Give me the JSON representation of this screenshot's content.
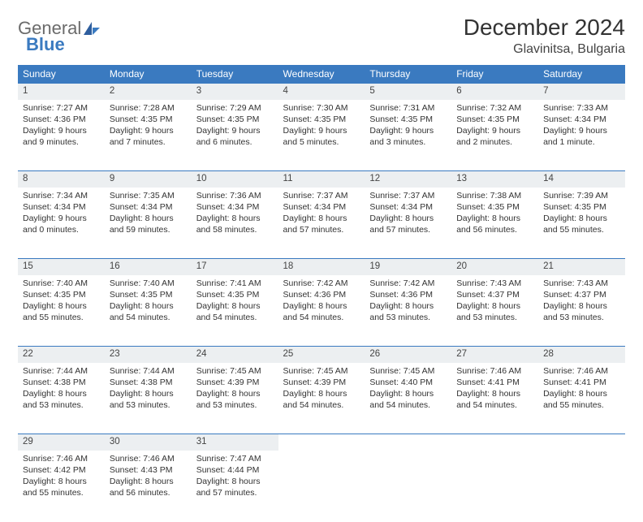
{
  "logo": {
    "text1": "General",
    "text2": "Blue"
  },
  "title": "December 2024",
  "location": "Glavinitsa, Bulgaria",
  "colors": {
    "header_bg": "#3a7ac0",
    "header_text": "#ffffff",
    "daynum_bg": "#eceff1",
    "rule": "#3a7ac0",
    "text": "#333333",
    "logo_gray": "#6b6b6b",
    "logo_blue": "#3a7ac0",
    "page_bg": "#ffffff"
  },
  "typography": {
    "title_fontsize": 28,
    "location_fontsize": 16,
    "dayheader_fontsize": 12,
    "daynum_fontsize": 11.5,
    "cell_fontsize": 10.5,
    "font_family": "Arial"
  },
  "headers": [
    "Sunday",
    "Monday",
    "Tuesday",
    "Wednesday",
    "Thursday",
    "Friday",
    "Saturday"
  ],
  "weeks": [
    [
      {
        "n": "1",
        "sr": "Sunrise: 7:27 AM",
        "ss": "Sunset: 4:36 PM",
        "dl": "Daylight: 9 hours and 9 minutes."
      },
      {
        "n": "2",
        "sr": "Sunrise: 7:28 AM",
        "ss": "Sunset: 4:35 PM",
        "dl": "Daylight: 9 hours and 7 minutes."
      },
      {
        "n": "3",
        "sr": "Sunrise: 7:29 AM",
        "ss": "Sunset: 4:35 PM",
        "dl": "Daylight: 9 hours and 6 minutes."
      },
      {
        "n": "4",
        "sr": "Sunrise: 7:30 AM",
        "ss": "Sunset: 4:35 PM",
        "dl": "Daylight: 9 hours and 5 minutes."
      },
      {
        "n": "5",
        "sr": "Sunrise: 7:31 AM",
        "ss": "Sunset: 4:35 PM",
        "dl": "Daylight: 9 hours and 3 minutes."
      },
      {
        "n": "6",
        "sr": "Sunrise: 7:32 AM",
        "ss": "Sunset: 4:35 PM",
        "dl": "Daylight: 9 hours and 2 minutes."
      },
      {
        "n": "7",
        "sr": "Sunrise: 7:33 AM",
        "ss": "Sunset: 4:34 PM",
        "dl": "Daylight: 9 hours and 1 minute."
      }
    ],
    [
      {
        "n": "8",
        "sr": "Sunrise: 7:34 AM",
        "ss": "Sunset: 4:34 PM",
        "dl": "Daylight: 9 hours and 0 minutes."
      },
      {
        "n": "9",
        "sr": "Sunrise: 7:35 AM",
        "ss": "Sunset: 4:34 PM",
        "dl": "Daylight: 8 hours and 59 minutes."
      },
      {
        "n": "10",
        "sr": "Sunrise: 7:36 AM",
        "ss": "Sunset: 4:34 PM",
        "dl": "Daylight: 8 hours and 58 minutes."
      },
      {
        "n": "11",
        "sr": "Sunrise: 7:37 AM",
        "ss": "Sunset: 4:34 PM",
        "dl": "Daylight: 8 hours and 57 minutes."
      },
      {
        "n": "12",
        "sr": "Sunrise: 7:37 AM",
        "ss": "Sunset: 4:34 PM",
        "dl": "Daylight: 8 hours and 57 minutes."
      },
      {
        "n": "13",
        "sr": "Sunrise: 7:38 AM",
        "ss": "Sunset: 4:35 PM",
        "dl": "Daylight: 8 hours and 56 minutes."
      },
      {
        "n": "14",
        "sr": "Sunrise: 7:39 AM",
        "ss": "Sunset: 4:35 PM",
        "dl": "Daylight: 8 hours and 55 minutes."
      }
    ],
    [
      {
        "n": "15",
        "sr": "Sunrise: 7:40 AM",
        "ss": "Sunset: 4:35 PM",
        "dl": "Daylight: 8 hours and 55 minutes."
      },
      {
        "n": "16",
        "sr": "Sunrise: 7:40 AM",
        "ss": "Sunset: 4:35 PM",
        "dl": "Daylight: 8 hours and 54 minutes."
      },
      {
        "n": "17",
        "sr": "Sunrise: 7:41 AM",
        "ss": "Sunset: 4:35 PM",
        "dl": "Daylight: 8 hours and 54 minutes."
      },
      {
        "n": "18",
        "sr": "Sunrise: 7:42 AM",
        "ss": "Sunset: 4:36 PM",
        "dl": "Daylight: 8 hours and 54 minutes."
      },
      {
        "n": "19",
        "sr": "Sunrise: 7:42 AM",
        "ss": "Sunset: 4:36 PM",
        "dl": "Daylight: 8 hours and 53 minutes."
      },
      {
        "n": "20",
        "sr": "Sunrise: 7:43 AM",
        "ss": "Sunset: 4:37 PM",
        "dl": "Daylight: 8 hours and 53 minutes."
      },
      {
        "n": "21",
        "sr": "Sunrise: 7:43 AM",
        "ss": "Sunset: 4:37 PM",
        "dl": "Daylight: 8 hours and 53 minutes."
      }
    ],
    [
      {
        "n": "22",
        "sr": "Sunrise: 7:44 AM",
        "ss": "Sunset: 4:38 PM",
        "dl": "Daylight: 8 hours and 53 minutes."
      },
      {
        "n": "23",
        "sr": "Sunrise: 7:44 AM",
        "ss": "Sunset: 4:38 PM",
        "dl": "Daylight: 8 hours and 53 minutes."
      },
      {
        "n": "24",
        "sr": "Sunrise: 7:45 AM",
        "ss": "Sunset: 4:39 PM",
        "dl": "Daylight: 8 hours and 53 minutes."
      },
      {
        "n": "25",
        "sr": "Sunrise: 7:45 AM",
        "ss": "Sunset: 4:39 PM",
        "dl": "Daylight: 8 hours and 54 minutes."
      },
      {
        "n": "26",
        "sr": "Sunrise: 7:45 AM",
        "ss": "Sunset: 4:40 PM",
        "dl": "Daylight: 8 hours and 54 minutes."
      },
      {
        "n": "27",
        "sr": "Sunrise: 7:46 AM",
        "ss": "Sunset: 4:41 PM",
        "dl": "Daylight: 8 hours and 54 minutes."
      },
      {
        "n": "28",
        "sr": "Sunrise: 7:46 AM",
        "ss": "Sunset: 4:41 PM",
        "dl": "Daylight: 8 hours and 55 minutes."
      }
    ],
    [
      {
        "n": "29",
        "sr": "Sunrise: 7:46 AM",
        "ss": "Sunset: 4:42 PM",
        "dl": "Daylight: 8 hours and 55 minutes."
      },
      {
        "n": "30",
        "sr": "Sunrise: 7:46 AM",
        "ss": "Sunset: 4:43 PM",
        "dl": "Daylight: 8 hours and 56 minutes."
      },
      {
        "n": "31",
        "sr": "Sunrise: 7:47 AM",
        "ss": "Sunset: 4:44 PM",
        "dl": "Daylight: 8 hours and 57 minutes."
      },
      null,
      null,
      null,
      null
    ]
  ]
}
